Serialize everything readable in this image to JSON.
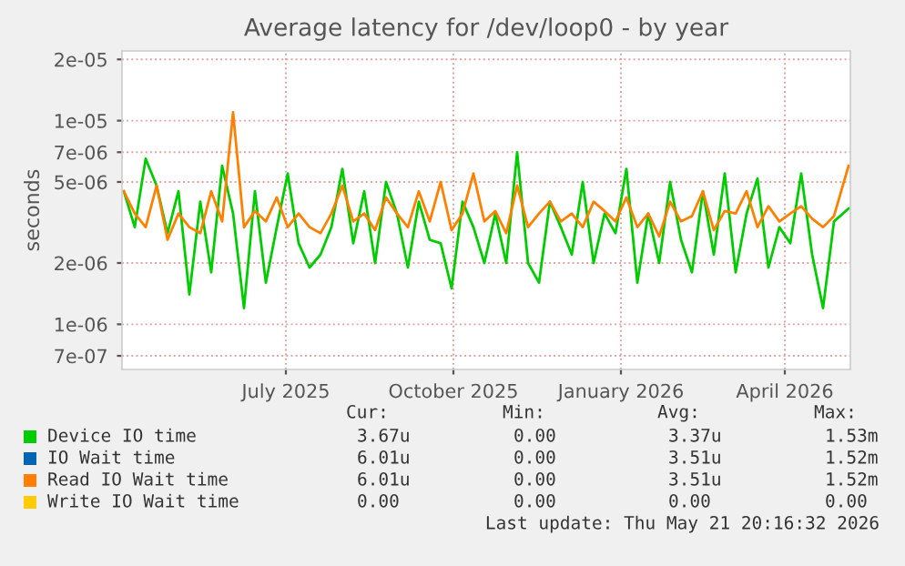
{
  "chart_data": {
    "type": "line",
    "title": "Average latency for /dev/loop0 - by year",
    "ylabel": "seconds",
    "log": "y",
    "x": [
      "2025-04-03",
      "2025-04-09",
      "2025-04-15",
      "2025-04-21",
      "2025-04-27",
      "2025-05-03",
      "2025-05-09",
      "2025-05-15",
      "2025-05-21",
      "2025-05-27",
      "2025-06-02",
      "2025-06-08",
      "2025-06-14",
      "2025-06-20",
      "2025-06-26",
      "2025-07-02",
      "2025-07-08",
      "2025-07-14",
      "2025-07-20",
      "2025-07-26",
      "2025-08-01",
      "2025-08-07",
      "2025-08-13",
      "2025-08-19",
      "2025-08-25",
      "2025-08-31",
      "2025-09-06",
      "2025-09-12",
      "2025-09-18",
      "2025-09-24",
      "2025-09-30",
      "2025-10-06",
      "2025-10-12",
      "2025-10-18",
      "2025-10-24",
      "2025-10-30",
      "2025-11-05",
      "2025-11-11",
      "2025-11-17",
      "2025-11-23",
      "2025-11-29",
      "2025-12-05",
      "2025-12-11",
      "2025-12-17",
      "2025-12-23",
      "2025-12-29",
      "2026-01-04",
      "2026-01-10",
      "2026-01-16",
      "2026-01-22",
      "2026-01-28",
      "2026-02-03",
      "2026-02-09",
      "2026-02-15",
      "2026-02-21",
      "2026-02-27",
      "2026-03-05",
      "2026-03-11",
      "2026-03-17",
      "2026-03-23",
      "2026-03-29",
      "2026-04-04",
      "2026-04-10",
      "2026-04-16",
      "2026-04-22",
      "2026-04-28",
      "2026-05-06"
    ],
    "series": [
      {
        "name": "Device IO time",
        "color": "#00cc00",
        "values": [
          4.5e-06,
          3e-06,
          6.5e-06,
          4.8e-06,
          2.8e-06,
          4.5e-06,
          1.4e-06,
          4e-06,
          1.8e-06,
          6e-06,
          3.5e-06,
          1.2e-06,
          4.5e-06,
          1.6e-06,
          3e-06,
          5.5e-06,
          2.5e-06,
          1.9e-06,
          2.2e-06,
          3e-06,
          5.8e-06,
          2.5e-06,
          4.5e-06,
          2e-06,
          5e-06,
          3.5e-06,
          1.9e-06,
          4e-06,
          2.6e-06,
          2.5e-06,
          1.5e-06,
          4e-06,
          3e-06,
          2e-06,
          3.5e-06,
          2e-06,
          7e-06,
          2e-06,
          1.6e-06,
          4e-06,
          3e-06,
          2.2e-06,
          5e-06,
          2e-06,
          3.5e-06,
          2.8e-06,
          5.8e-06,
          1.6e-06,
          3.5e-06,
          2e-06,
          5e-06,
          2.6e-06,
          1.8e-06,
          4.5e-06,
          2.2e-06,
          5.5e-06,
          1.8e-06,
          3.5e-06,
          5.2e-06,
          1.9e-06,
          3e-06,
          2.5e-06,
          5.5e-06,
          2.2e-06,
          1.2e-06,
          3.2e-06,
          3.7e-06
        ]
      },
      {
        "name": "IO Wait time",
        "color": "#0066b3",
        "values": [
          null,
          null,
          null,
          null,
          null,
          null,
          null,
          null,
          null,
          null,
          null,
          null,
          null,
          null,
          null,
          null,
          null,
          null,
          null,
          null,
          null,
          null,
          null,
          null,
          null,
          null,
          null,
          null,
          null,
          null,
          null,
          null,
          null,
          null,
          null,
          null,
          null,
          null,
          null,
          null,
          null,
          null,
          null,
          null,
          null,
          null,
          null,
          null,
          null,
          null,
          null,
          null,
          null,
          null,
          null,
          null,
          null,
          null,
          null,
          null,
          null,
          null,
          null,
          null,
          null,
          null,
          null
        ]
      },
      {
        "name": "Read IO Wait time",
        "color": "#ff8000",
        "values": [
          4.5e-06,
          3.5e-06,
          3e-06,
          4.8e-06,
          2.6e-06,
          3.5e-06,
          3e-06,
          2.8e-06,
          4.5e-06,
          3.2e-06,
          1.1e-05,
          3e-06,
          3.6e-06,
          3.2e-06,
          4.2e-06,
          3e-06,
          3.5e-06,
          3e-06,
          2.8e-06,
          3.5e-06,
          4.8e-06,
          3.2e-06,
          3.5e-06,
          2.9e-06,
          4.2e-06,
          3.5e-06,
          3e-06,
          4.5e-06,
          3.2e-06,
          5e-06,
          2.9e-06,
          3.5e-06,
          5.5e-06,
          3.2e-06,
          3.6e-06,
          2.8e-06,
          4.8e-06,
          3e-06,
          3.5e-06,
          4e-06,
          3.2e-06,
          3.5e-06,
          3e-06,
          4e-06,
          3.6e-06,
          3.2e-06,
          4.2e-06,
          3e-06,
          3.5e-06,
          2.7e-06,
          4e-06,
          3.2e-06,
          3.4e-06,
          4.5e-06,
          2.9e-06,
          3.6e-06,
          3.5e-06,
          4.5e-06,
          3e-06,
          3.8e-06,
          3.2e-06,
          3.5e-06,
          3.8e-06,
          3.3e-06,
          3e-06,
          3.4e-06,
          6e-06
        ]
      },
      {
        "name": "Write IO Wait time",
        "color": "#ffcc00",
        "values": [
          null,
          null,
          null,
          null,
          null,
          null,
          null,
          null,
          null,
          null,
          null,
          null,
          null,
          null,
          null,
          null,
          null,
          null,
          null,
          null,
          null,
          null,
          null,
          null,
          null,
          null,
          null,
          null,
          null,
          null,
          null,
          null,
          null,
          null,
          null,
          null,
          null,
          null,
          null,
          null,
          null,
          null,
          null,
          null,
          null,
          null,
          null,
          null,
          null,
          null,
          null,
          null,
          null,
          null,
          null,
          null,
          null,
          null,
          null,
          null,
          null,
          null,
          null,
          null,
          null,
          null,
          null
        ]
      }
    ],
    "xlim": [
      "2025-04-02",
      "2026-05-07"
    ],
    "xticks": [
      {
        "value": "2025-07-01",
        "label": "July 2025"
      },
      {
        "value": "2025-10-01",
        "label": "October 2025"
      },
      {
        "value": "2026-01-01",
        "label": "January 2026"
      },
      {
        "value": "2026-04-01",
        "label": "April 2026"
      }
    ],
    "ylim": [
      6e-07,
      2.2e-05
    ],
    "yticks": [
      {
        "value": 7e-07,
        "label": "7e-07"
      },
      {
        "value": 1e-06,
        "label": "1e-06"
      },
      {
        "value": 2e-06,
        "label": "2e-06"
      },
      {
        "value": 5e-06,
        "label": "5e-06"
      },
      {
        "value": 7e-06,
        "label": "7e-06"
      },
      {
        "value": 1e-05,
        "label": "1e-05"
      },
      {
        "value": 2e-05,
        "label": "2e-05"
      }
    ],
    "grid": true,
    "legend": "bottom",
    "marker": "none",
    "line_style": "solid",
    "annotations": [
      "Cur:",
      "Min:",
      "Avg:",
      "Max:",
      "3.67u",
      "0.00",
      "3.37u",
      "1.53m",
      "6.01u",
      "0.00",
      "3.51u",
      "1.52m",
      "6.01u",
      "0.00",
      "3.51u",
      "1.52m",
      "0.00",
      "0.00",
      "0.00",
      "0.00",
      "Last update: Thu May 21 20:16:32 2026"
    ]
  }
}
